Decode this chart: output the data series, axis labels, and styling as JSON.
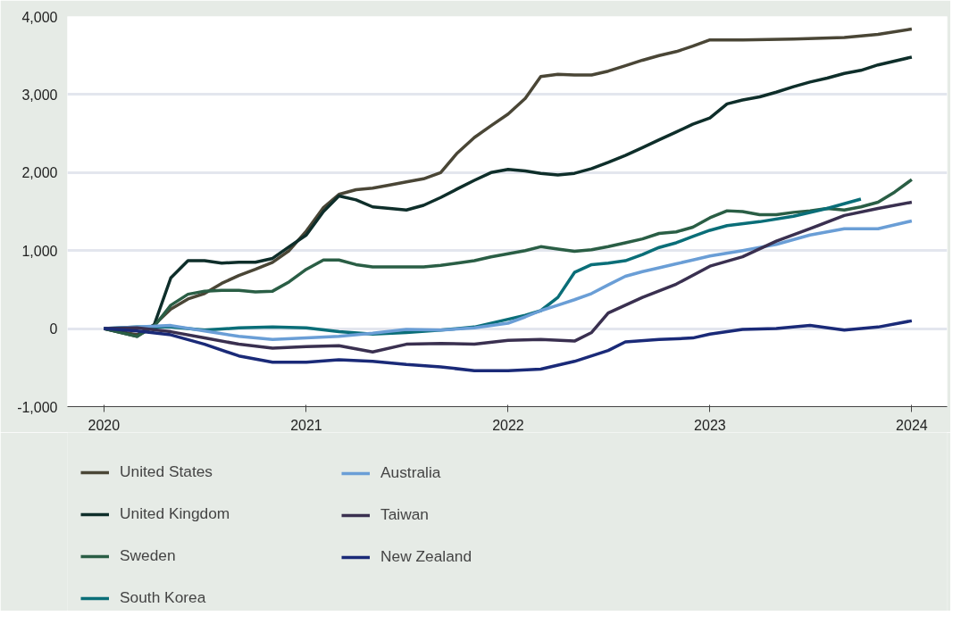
{
  "chart_data": {
    "type": "line",
    "xlim": [
      "2019-10-27",
      "2024-03-05"
    ],
    "xticks": [
      "2020",
      "2021",
      "2022",
      "2023",
      "2024"
    ],
    "ylim": [
      -1000,
      4000
    ],
    "yticks": [
      {
        "value": -1000,
        "label": "-1,000"
      },
      0,
      {
        "value": 1000,
        "label": "1,000"
      },
      {
        "value": 2000,
        "label": "2,000"
      },
      {
        "value": 3000,
        "label": "3,000"
      },
      {
        "value": 4000,
        "label": "4,000"
      }
    ],
    "grid": "y",
    "legend": "bottom",
    "line_style": "solid",
    "series": [
      {
        "name": "United States",
        "color": "#4a4636",
        "x": [
          "2020-01",
          "2020-03",
          "2020-04",
          "2020-05",
          "2020-06",
          "2020-07",
          "2020-08",
          "2020-09",
          "2020-10",
          "2020-11",
          "2020-12",
          "2021-01",
          "2021-02",
          "2021-03",
          "2021-04",
          "2021-05",
          "2021-06",
          "2021-07",
          "2021-08",
          "2021-09",
          "2021-10",
          "2021-11",
          "2021-12",
          "2022-01",
          "2022-02",
          "2022-03",
          "2022-04",
          "2022-05",
          "2022-06",
          "2022-07",
          "2022-08",
          "2022-09",
          "2022-10",
          "2022-11",
          "2022-12",
          "2023-01",
          "2023-03",
          "2023-06",
          "2023-09",
          "2023-11",
          "2024-01"
        ],
        "values": [
          0,
          -80,
          50,
          250,
          380,
          450,
          580,
          680,
          760,
          850,
          1000,
          1250,
          1550,
          1720,
          1780,
          1800,
          1840,
          1880,
          1920,
          2000,
          2250,
          2450,
          2600,
          2750,
          2950,
          3230,
          3260,
          3250,
          3250,
          3300,
          3370,
          3440,
          3500,
          3550,
          3620,
          3700,
          3700,
          3710,
          3730,
          3770,
          3840
        ]
      },
      {
        "name": "United Kingdom",
        "color": "#0e2e2a",
        "x": [
          "2020-01",
          "2020-03",
          "2020-04",
          "2020-05",
          "2020-06",
          "2020-07",
          "2020-08",
          "2020-09",
          "2020-10",
          "2020-11",
          "2020-12",
          "2021-01",
          "2021-02",
          "2021-03",
          "2021-04",
          "2021-05",
          "2021-06",
          "2021-07",
          "2021-08",
          "2021-09",
          "2021-10",
          "2021-11",
          "2021-12",
          "2022-01",
          "2022-02",
          "2022-03",
          "2022-04",
          "2022-05",
          "2022-06",
          "2022-07",
          "2022-08",
          "2022-09",
          "2022-10",
          "2022-11",
          "2022-12",
          "2023-01",
          "2023-02",
          "2023-03",
          "2023-04",
          "2023-05",
          "2023-06",
          "2023-07",
          "2023-08",
          "2023-09",
          "2023-10",
          "2023-11",
          "2024-01"
        ],
        "values": [
          0,
          -100,
          50,
          650,
          870,
          870,
          840,
          850,
          850,
          900,
          1050,
          1200,
          1500,
          1700,
          1650,
          1560,
          1540,
          1520,
          1580,
          1680,
          1790,
          1900,
          2000,
          2040,
          2020,
          1990,
          1970,
          1990,
          2050,
          2130,
          2220,
          2320,
          2420,
          2520,
          2620,
          2700,
          2880,
          2930,
          2970,
          3030,
          3100,
          3160,
          3210,
          3270,
          3310,
          3380,
          3480
        ]
      },
      {
        "name": "Sweden",
        "color": "#2a5e45",
        "x": [
          "2020-01",
          "2020-03",
          "2020-04",
          "2020-05",
          "2020-06",
          "2020-07",
          "2020-08",
          "2020-09",
          "2020-10",
          "2020-11",
          "2020-12",
          "2021-01",
          "2021-02",
          "2021-03",
          "2021-04",
          "2021-05",
          "2021-06",
          "2021-07",
          "2021-08",
          "2021-09",
          "2021-10",
          "2021-11",
          "2021-12",
          "2022-01",
          "2022-02",
          "2022-03",
          "2022-04",
          "2022-05",
          "2022-06",
          "2022-07",
          "2022-08",
          "2022-09",
          "2022-10",
          "2022-11",
          "2022-12",
          "2023-01",
          "2023-02",
          "2023-03",
          "2023-04",
          "2023-05",
          "2023-06",
          "2023-07",
          "2023-08",
          "2023-09",
          "2023-10",
          "2023-11",
          "2023-12",
          "2024-01"
        ],
        "values": [
          0,
          -100,
          30,
          300,
          440,
          480,
          490,
          490,
          470,
          480,
          600,
          760,
          880,
          880,
          820,
          790,
          790,
          790,
          790,
          810,
          840,
          870,
          920,
          960,
          1000,
          1050,
          1020,
          990,
          1010,
          1050,
          1100,
          1150,
          1220,
          1240,
          1300,
          1420,
          1510,
          1500,
          1460,
          1460,
          1490,
          1510,
          1540,
          1520,
          1560,
          1620,
          1750,
          1910
        ]
      },
      {
        "name": "South Korea",
        "color": "#0a6e78",
        "x": [
          "2020-01",
          "2020-03",
          "2020-05",
          "2020-07",
          "2020-09",
          "2020-11",
          "2021-01",
          "2021-03",
          "2021-05",
          "2021-07",
          "2021-09",
          "2021-11",
          "2022-01",
          "2022-02",
          "2022-03",
          "2022-04",
          "2022-05",
          "2022-06",
          "2022-07",
          "2022-08",
          "2022-09",
          "2022-10",
          "2022-11",
          "2022-12",
          "2023-01",
          "2023-02",
          "2023-04",
          "2023-06",
          "2023-08",
          "2023-10"
        ],
        "values": [
          0,
          20,
          20,
          -20,
          10,
          20,
          10,
          -40,
          -70,
          -50,
          -20,
          20,
          120,
          170,
          230,
          400,
          720,
          820,
          840,
          870,
          950,
          1040,
          1100,
          1180,
          1260,
          1320,
          1370,
          1440,
          1540,
          1660
        ]
      },
      {
        "name": "Australia",
        "color": "#6a9ed6",
        "x": [
          "2020-01",
          "2020-03",
          "2020-05",
          "2020-07",
          "2020-09",
          "2020-11",
          "2021-01",
          "2021-03",
          "2021-05",
          "2021-07",
          "2021-09",
          "2021-11",
          "2022-01",
          "2022-02",
          "2022-03",
          "2022-04",
          "2022-05",
          "2022-06",
          "2022-07",
          "2022-08",
          "2022-09",
          "2022-10",
          "2022-11",
          "2022-12",
          "2023-01",
          "2023-03",
          "2023-05",
          "2023-07",
          "2023-09",
          "2023-11",
          "2024-01"
        ],
        "values": [
          0,
          20,
          40,
          -30,
          -100,
          -140,
          -120,
          -100,
          -60,
          -10,
          -20,
          10,
          70,
          150,
          230,
          300,
          370,
          450,
          560,
          670,
          730,
          780,
          830,
          880,
          930,
          1000,
          1080,
          1200,
          1280,
          1280,
          1380
        ]
      },
      {
        "name": "Taiwan",
        "color": "#3a3050",
        "x": [
          "2020-01",
          "2020-03",
          "2020-05",
          "2020-07",
          "2020-09",
          "2020-11",
          "2021-01",
          "2021-03",
          "2021-05",
          "2021-07",
          "2021-09",
          "2021-11",
          "2022-01",
          "2022-03",
          "2022-05",
          "2022-06",
          "2022-07",
          "2022-09",
          "2022-11",
          "2023-01",
          "2023-03",
          "2023-05",
          "2023-07",
          "2023-09",
          "2023-11",
          "2024-01"
        ],
        "values": [
          0,
          10,
          -40,
          -120,
          -200,
          -250,
          -230,
          -220,
          -300,
          -200,
          -190,
          -200,
          -150,
          -140,
          -160,
          -50,
          200,
          400,
          570,
          800,
          920,
          1120,
          1280,
          1450,
          1540,
          1620
        ]
      },
      {
        "name": "New Zealand",
        "color": "#1a2a78",
        "x": [
          "2020-01",
          "2020-03",
          "2020-05",
          "2020-07",
          "2020-09",
          "2020-11",
          "2021-01",
          "2021-03",
          "2021-05",
          "2021-07",
          "2021-09",
          "2021-11",
          "2022-01",
          "2022-03",
          "2022-05",
          "2022-07",
          "2022-08",
          "2022-10",
          "2022-12",
          "2023-01",
          "2023-03",
          "2023-05",
          "2023-07",
          "2023-09",
          "2023-11",
          "2024-01"
        ],
        "values": [
          0,
          -30,
          -80,
          -200,
          -350,
          -430,
          -430,
          -400,
          -420,
          -460,
          -490,
          -540,
          -540,
          -520,
          -420,
          -280,
          -170,
          -140,
          -120,
          -70,
          -10,
          0,
          40,
          -20,
          20,
          100
        ]
      }
    ]
  }
}
